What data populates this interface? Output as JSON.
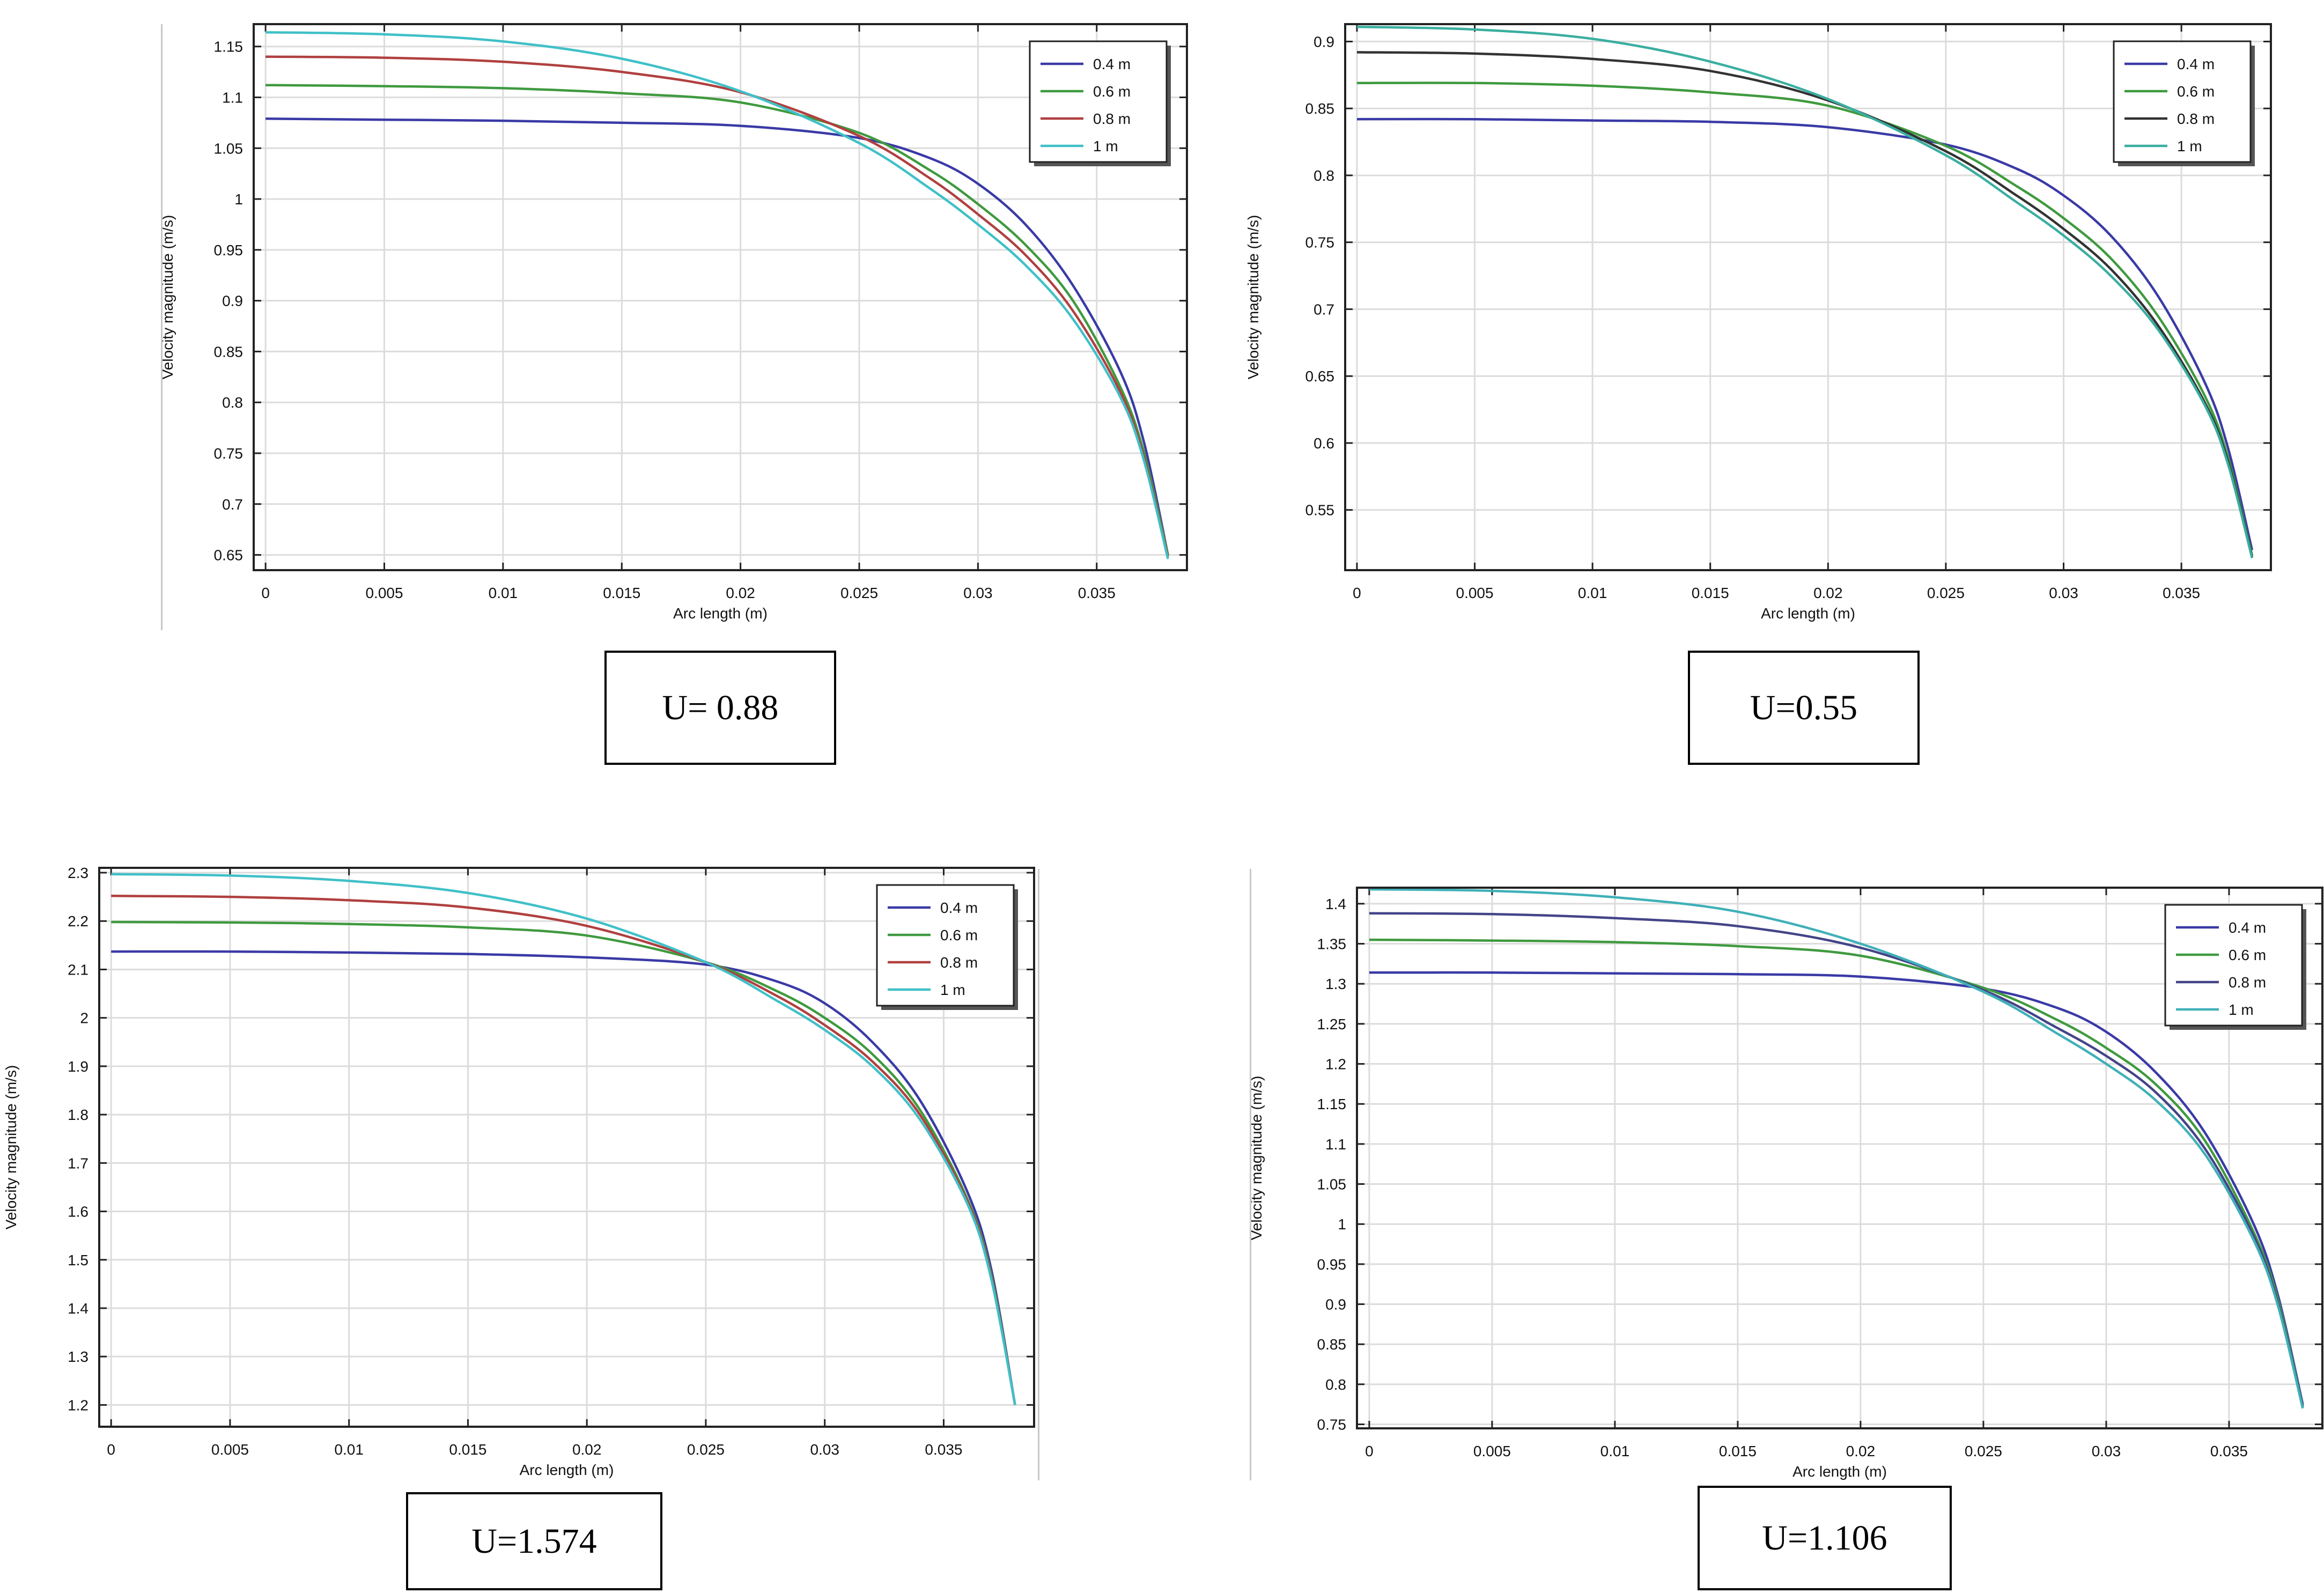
{
  "chart_data": [
    {
      "type": "line",
      "caption": "U= 0.88",
      "xlabel": "Arc length (m)",
      "ylabel": "Velocity magnitude (m/s)",
      "xlim": [
        -0.0005,
        0.0388
      ],
      "ylim": [
        0.635,
        1.172
      ],
      "xticks": [
        0,
        0.005,
        0.01,
        0.015,
        0.02,
        0.025,
        0.03,
        0.035
      ],
      "xtick_labels": [
        "0",
        "0.005",
        "0.01",
        "0.015",
        "0.02",
        "0.025",
        "0.03",
        "0.035"
      ],
      "yticks": [
        0.65,
        0.7,
        0.75,
        0.8,
        0.85,
        0.9,
        0.95,
        1,
        1.05,
        1.1,
        1.15
      ],
      "ytick_labels": [
        "0.65",
        "0.7",
        "0.75",
        "0.8",
        "0.85",
        "0.9",
        "0.95",
        "1",
        "1.05",
        "1.1",
        "1.15"
      ],
      "x": [
        0,
        0.005,
        0.01,
        0.015,
        0.02,
        0.025,
        0.028,
        0.03,
        0.032,
        0.034,
        0.036,
        0.037,
        0.038
      ],
      "series": [
        {
          "name": "0.4 m",
          "color": "#3a3aa6",
          "values": [
            1.079,
            1.078,
            1.077,
            1.075,
            1.072,
            1.06,
            1.04,
            1.015,
            0.975,
            0.915,
            0.83,
            0.76,
            0.65
          ]
        },
        {
          "name": "0.6 m",
          "color": "#3f9a3f",
          "values": [
            1.112,
            1.111,
            1.109,
            1.104,
            1.095,
            1.065,
            1.028,
            0.995,
            0.955,
            0.9,
            0.815,
            0.75,
            0.65
          ]
        },
        {
          "name": "0.8 m",
          "color": "#b04040",
          "values": [
            1.14,
            1.139,
            1.135,
            1.125,
            1.105,
            1.062,
            1.02,
            0.985,
            0.945,
            0.89,
            0.81,
            0.745,
            0.648
          ]
        },
        {
          "name": "1 m",
          "color": "#40c0c8",
          "values": [
            1.164,
            1.162,
            1.155,
            1.138,
            1.106,
            1.055,
            1.01,
            0.975,
            0.935,
            0.882,
            0.805,
            0.742,
            0.646
          ]
        }
      ],
      "legend_position": "top-right"
    },
    {
      "type": "line",
      "caption": "U=0.55",
      "xlabel": "Arc length (m)",
      "ylabel": "Velocity magnitude (m/s)",
      "xlim": [
        -0.0005,
        0.0388
      ],
      "ylim": [
        0.505,
        0.913
      ],
      "xticks": [
        0,
        0.005,
        0.01,
        0.015,
        0.02,
        0.025,
        0.03,
        0.035
      ],
      "xtick_labels": [
        "0",
        "0.005",
        "0.01",
        "0.015",
        "0.02",
        "0.025",
        "0.03",
        "0.035"
      ],
      "yticks": [
        0.55,
        0.6,
        0.65,
        0.7,
        0.75,
        0.8,
        0.85,
        0.9
      ],
      "ytick_labels": [
        "0.55",
        "0.6",
        "0.65",
        "0.7",
        "0.75",
        "0.8",
        "0.85",
        "0.9"
      ],
      "x": [
        0,
        0.005,
        0.01,
        0.015,
        0.02,
        0.025,
        0.028,
        0.03,
        0.032,
        0.034,
        0.036,
        0.037,
        0.038
      ],
      "series": [
        {
          "name": "0.4 m",
          "color": "#3a3aa6",
          "values": [
            0.842,
            0.842,
            0.841,
            0.84,
            0.836,
            0.823,
            0.805,
            0.785,
            0.755,
            0.71,
            0.645,
            0.595,
            0.52
          ]
        },
        {
          "name": "0.6 m",
          "color": "#3f9a3f",
          "values": [
            0.869,
            0.869,
            0.867,
            0.862,
            0.852,
            0.822,
            0.792,
            0.768,
            0.738,
            0.695,
            0.635,
            0.588,
            0.516
          ]
        },
        {
          "name": "0.8 m",
          "color": "#333333",
          "values": [
            0.892,
            0.891,
            0.887,
            0.878,
            0.856,
            0.818,
            0.785,
            0.76,
            0.73,
            0.688,
            0.63,
            0.585,
            0.515
          ]
        },
        {
          "name": "1 m",
          "color": "#3aaea0",
          "values": [
            0.911,
            0.909,
            0.902,
            0.885,
            0.857,
            0.815,
            0.78,
            0.755,
            0.725,
            0.685,
            0.628,
            0.583,
            0.514
          ]
        }
      ],
      "legend_position": "top-right"
    },
    {
      "type": "line",
      "caption": "U=1.574",
      "xlabel": "Arc length (m)",
      "ylabel": "Velocity magnitude (m/s)",
      "xlim": [
        -0.0005,
        0.0388
      ],
      "ylim": [
        1.155,
        2.31
      ],
      "xticks": [
        0,
        0.005,
        0.01,
        0.015,
        0.02,
        0.025,
        0.03,
        0.035
      ],
      "xtick_labels": [
        "0",
        "0.005",
        "0.01",
        "0.015",
        "0.02",
        "0.025",
        "0.03",
        "0.035"
      ],
      "yticks": [
        1.2,
        1.3,
        1.4,
        1.5,
        1.6,
        1.7,
        1.8,
        1.9,
        2,
        2.1,
        2.2,
        2.3
      ],
      "ytick_labels": [
        "1.2",
        "1.3",
        "1.4",
        "1.5",
        "1.6",
        "1.7",
        "1.8",
        "1.9",
        "2",
        "2.1",
        "2.2",
        "2.3"
      ],
      "x": [
        0,
        0.005,
        0.01,
        0.015,
        0.02,
        0.025,
        0.028,
        0.03,
        0.032,
        0.034,
        0.036,
        0.037,
        0.038
      ],
      "series": [
        {
          "name": "0.4 m",
          "color": "#3a3aa6",
          "values": [
            2.137,
            2.137,
            2.135,
            2.132,
            2.125,
            2.11,
            2.075,
            2.03,
            1.95,
            1.83,
            1.64,
            1.48,
            1.2
          ]
        },
        {
          "name": "0.6 m",
          "color": "#3f9a3f",
          "values": [
            2.198,
            2.197,
            2.194,
            2.187,
            2.17,
            2.115,
            2.055,
            2.0,
            1.925,
            1.81,
            1.625,
            1.47,
            1.2
          ]
        },
        {
          "name": "0.8 m",
          "color": "#b04040",
          "values": [
            2.252,
            2.25,
            2.243,
            2.228,
            2.19,
            2.115,
            2.045,
            1.985,
            1.91,
            1.8,
            1.62,
            1.465,
            1.2
          ]
        },
        {
          "name": "1 m",
          "color": "#40c0c8",
          "values": [
            2.297,
            2.294,
            2.283,
            2.258,
            2.205,
            2.115,
            2.035,
            1.975,
            1.9,
            1.79,
            1.615,
            1.46,
            1.2
          ]
        }
      ],
      "legend_position": "top-right"
    },
    {
      "type": "line",
      "caption": "U=1.106",
      "xlabel": "Arc length (m)",
      "ylabel": "Velocity magnitude (m/s)",
      "xlim": [
        -0.0005,
        0.0388
      ],
      "ylim": [
        0.745,
        1.42
      ],
      "xticks": [
        0,
        0.005,
        0.01,
        0.015,
        0.02,
        0.025,
        0.03,
        0.035
      ],
      "xtick_labels": [
        "0",
        "0.005",
        "0.01",
        "0.015",
        "0.02",
        "0.025",
        "0.03",
        "0.035"
      ],
      "yticks": [
        0.75,
        0.8,
        0.85,
        0.9,
        0.95,
        1,
        1.05,
        1.1,
        1.15,
        1.2,
        1.25,
        1.3,
        1.35,
        1.4
      ],
      "ytick_labels": [
        "0.75",
        "0.8",
        "0.85",
        "0.9",
        "0.95",
        "1",
        "1.05",
        "1.1",
        "1.15",
        "1.2",
        "1.25",
        "1.3",
        "1.35",
        "1.4"
      ],
      "x": [
        0,
        0.005,
        0.01,
        0.015,
        0.02,
        0.025,
        0.028,
        0.03,
        0.032,
        0.034,
        0.036,
        0.037,
        0.038
      ],
      "series": [
        {
          "name": "0.4 m",
          "color": "#3a3aa6",
          "values": [
            1.314,
            1.314,
            1.313,
            1.312,
            1.309,
            1.294,
            1.27,
            1.24,
            1.19,
            1.115,
            1.0,
            0.91,
            0.775
          ]
        },
        {
          "name": "0.6 m",
          "color": "#3f9a3f",
          "values": [
            1.355,
            1.354,
            1.352,
            1.347,
            1.335,
            1.295,
            1.255,
            1.22,
            1.175,
            1.105,
            0.99,
            0.905,
            0.773
          ]
        },
        {
          "name": "0.8 m",
          "color": "#444488",
          "values": [
            1.388,
            1.387,
            1.382,
            1.372,
            1.345,
            1.292,
            1.245,
            1.21,
            1.165,
            1.095,
            0.985,
            0.9,
            0.772
          ]
        },
        {
          "name": "1 m",
          "color": "#40b0b8",
          "values": [
            1.418,
            1.416,
            1.408,
            1.39,
            1.35,
            1.29,
            1.238,
            1.2,
            1.155,
            1.088,
            0.98,
            0.897,
            0.77
          ]
        }
      ],
      "legend_position": "top-right"
    }
  ]
}
